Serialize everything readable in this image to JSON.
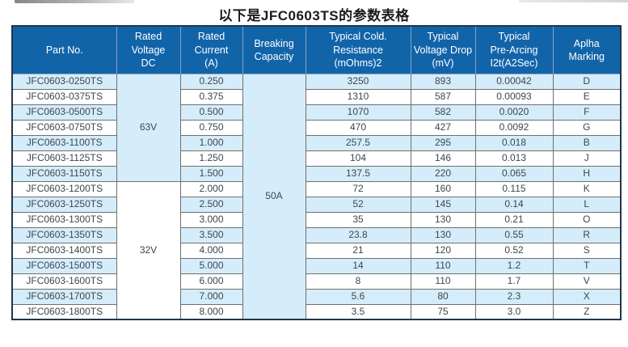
{
  "page": {
    "title": "以下是JFC0603TS的参数表格"
  },
  "colors": {
    "header_bg": "#1264a9",
    "stripe_bg": "#d5edfb",
    "white_bg": "#ffffff",
    "header_text": "#ffffff",
    "body_text": "#3e464e",
    "border": "#6f6f6f",
    "outer_border": "#22354c"
  },
  "table": {
    "columns": [
      {
        "label": "Part No."
      },
      {
        "label": "Rated\nVoltage\nDC"
      },
      {
        "label": "Rated\nCurrent\n(A)"
      },
      {
        "label": "Breaking\nCapacity"
      },
      {
        "label": "Typical Cold.\nResistance\n(mOhms)2"
      },
      {
        "label": "Typical\nVoltage Drop\n(mV)"
      },
      {
        "label": "Typical\nPre-Arcing\nI2t(A2Sec)"
      },
      {
        "label": "Aplha\nMarking"
      }
    ],
    "voltage_groups": [
      {
        "label": "63V",
        "rows": 7
      },
      {
        "label": "32V",
        "rows": 9
      }
    ],
    "breaking_capacity": {
      "label": "50A",
      "rows": 16
    },
    "rows": [
      {
        "part": "JFC0603-0250TS",
        "current": "0.250",
        "resistance": "3250",
        "voltage_drop": "893",
        "pre_arcing": "0.00042",
        "marking": "D"
      },
      {
        "part": "JFC0603-0375TS",
        "current": "0.375",
        "resistance": "1310",
        "voltage_drop": "587",
        "pre_arcing": "0.00093",
        "marking": "E"
      },
      {
        "part": "JFC0603-0500TS",
        "current": "0.500",
        "resistance": "1070",
        "voltage_drop": "582",
        "pre_arcing": "0.0020",
        "marking": "F"
      },
      {
        "part": "JFC0603-0750TS",
        "current": "0.750",
        "resistance": "470",
        "voltage_drop": "427",
        "pre_arcing": "0.0092",
        "marking": "G"
      },
      {
        "part": "JFC0603-1100TS",
        "current": "1.000",
        "resistance": "257.5",
        "voltage_drop": "295",
        "pre_arcing": "0.018",
        "marking": "B"
      },
      {
        "part": "JFC0603-1125TS",
        "current": "1.250",
        "resistance": "104",
        "voltage_drop": "146",
        "pre_arcing": "0.013",
        "marking": "J"
      },
      {
        "part": "JFC0603-1150TS",
        "current": "1.500",
        "resistance": "137.5",
        "voltage_drop": "220",
        "pre_arcing": "0.065",
        "marking": "H"
      },
      {
        "part": "JFC0603-1200TS",
        "current": "2.000",
        "resistance": "72",
        "voltage_drop": "160",
        "pre_arcing": "0.115",
        "marking": "K"
      },
      {
        "part": "JFC0603-1250TS",
        "current": "2.500",
        "resistance": "52",
        "voltage_drop": "145",
        "pre_arcing": "0.14",
        "marking": "L"
      },
      {
        "part": "JFC0603-1300TS",
        "current": "3.000",
        "resistance": "35",
        "voltage_drop": "130",
        "pre_arcing": "0.21",
        "marking": "O"
      },
      {
        "part": "JFC0603-1350TS",
        "current": "3.500",
        "resistance": "23.8",
        "voltage_drop": "130",
        "pre_arcing": "0.55",
        "marking": "R"
      },
      {
        "part": "JFC0603-1400TS",
        "current": "4.000",
        "resistance": "21",
        "voltage_drop": "120",
        "pre_arcing": "0.52",
        "marking": "S"
      },
      {
        "part": "JFC0603-1500TS",
        "current": "5.000",
        "resistance": "14",
        "voltage_drop": "110",
        "pre_arcing": "1.2",
        "marking": "T"
      },
      {
        "part": "JFC0603-1600TS",
        "current": "6.000",
        "resistance": "8",
        "voltage_drop": "110",
        "pre_arcing": "1.7",
        "marking": "V"
      },
      {
        "part": "JFC0603-1700TS",
        "current": "7.000",
        "resistance": "5.6",
        "voltage_drop": "80",
        "pre_arcing": "2.3",
        "marking": "X"
      },
      {
        "part": "JFC0603-1800TS",
        "current": "8.000",
        "resistance": "3.5",
        "voltage_drop": "75",
        "pre_arcing": "3.0",
        "marking": "Z"
      }
    ]
  }
}
